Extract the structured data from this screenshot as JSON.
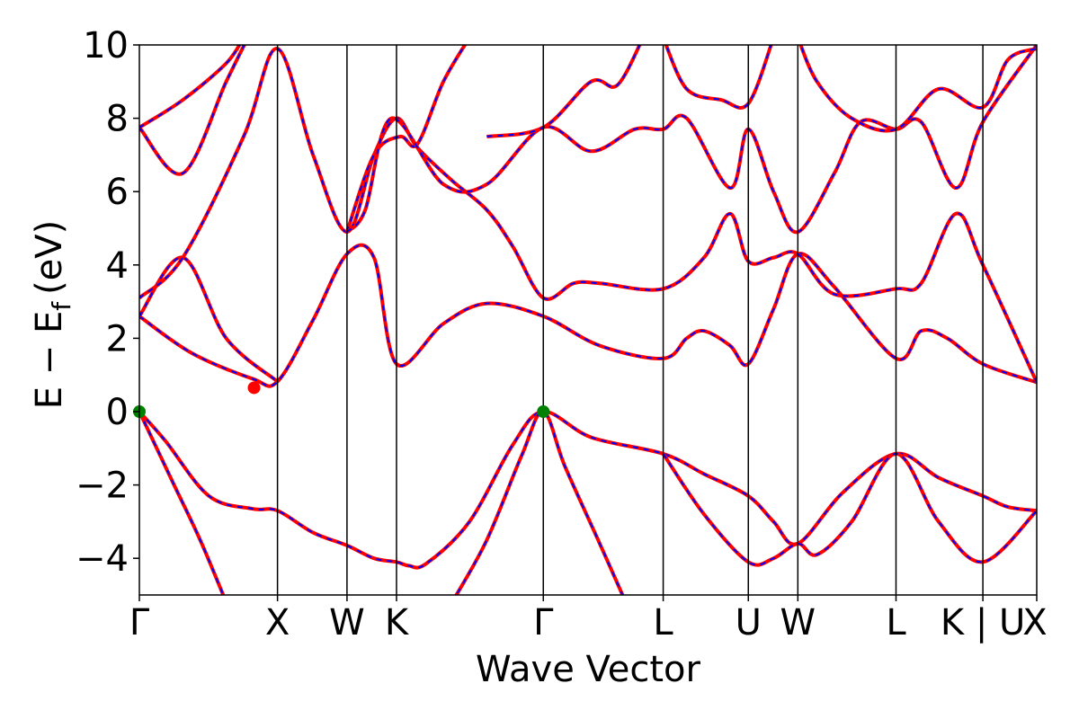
{
  "chart_data": {
    "type": "line",
    "xlabel": "Wave Vector",
    "ylabel_main": "E − E",
    "ylabel_sub": "f",
    "ylabel_unit": "(eV)",
    "ylim": [
      -5,
      10
    ],
    "yticks": [
      -4,
      -2,
      0,
      2,
      4,
      6,
      8,
      10
    ],
    "ytick_labels": [
      "−4",
      "−2",
      "0",
      "2",
      "4",
      "6",
      "8",
      "10"
    ],
    "x_range": [
      0,
      10.33
    ],
    "kpoints": [
      {
        "label": "Γ",
        "x": 0
      },
      {
        "label": "X",
        "x": 1.59
      },
      {
        "label": "W",
        "x": 2.39
      },
      {
        "label": "K",
        "x": 2.96
      },
      {
        "label": "Γ",
        "x": 4.65
      },
      {
        "label": "L",
        "x": 6.03
      },
      {
        "label": "U",
        "x": 7.01
      },
      {
        "label": "W",
        "x": 7.58
      },
      {
        "label": "L",
        "x": 8.71
      },
      {
        "label": "K | U",
        "x": 9.71
      },
      {
        "label": "X",
        "x": 10.33
      }
    ],
    "colors": {
      "line_main": "#ff0000",
      "line_dash": "#0000ff",
      "cbm": "#ff0000",
      "vbm": "#008000"
    },
    "markers": [
      {
        "name": "cbm",
        "x": 1.32,
        "y": 0.65
      },
      {
        "name": "vbm",
        "x": 0,
        "y": 0
      },
      {
        "name": "vbm",
        "x": 4.65,
        "y": 0
      }
    ],
    "series": [
      {
        "values": [
          [
            0,
            0
          ],
          [
            0.3,
            -0.8
          ],
          [
            0.8,
            -2.3
          ],
          [
            1.3,
            -2.65
          ],
          [
            1.59,
            -2.7
          ],
          [
            2.0,
            -3.3
          ],
          [
            2.39,
            -3.65
          ],
          [
            2.7,
            -4.0
          ],
          [
            2.96,
            -4.1
          ],
          [
            3.1,
            -4.2
          ],
          [
            3.3,
            -4.15
          ],
          [
            3.8,
            -3.0
          ],
          [
            4.3,
            -0.9
          ],
          [
            4.65,
            0
          ],
          [
            5.2,
            -0.7
          ],
          [
            6.03,
            -1.15
          ],
          [
            6.5,
            -1.7
          ],
          [
            7.01,
            -2.3
          ],
          [
            7.3,
            -3.0
          ],
          [
            7.58,
            -3.6
          ],
          [
            8.1,
            -2.2
          ],
          [
            8.71,
            -1.15
          ],
          [
            9.2,
            -1.8
          ],
          [
            9.71,
            -2.3
          ],
          [
            10.0,
            -2.6
          ],
          [
            10.33,
            -2.7
          ]
        ]
      },
      {
        "values": [
          [
            0,
            0
          ],
          [
            0.4,
            -2.0
          ],
          [
            0.7,
            -3.5
          ],
          [
            1.0,
            -5.2
          ]
        ]
      },
      {
        "values": [
          [
            3.6,
            -5.2
          ],
          [
            4.0,
            -3.5
          ],
          [
            4.4,
            -1.2
          ],
          [
            4.65,
            0
          ],
          [
            4.9,
            -1.5
          ],
          [
            5.3,
            -3.6
          ],
          [
            5.6,
            -5.2
          ]
        ]
      },
      {
        "values": [
          [
            6.03,
            -1.15
          ],
          [
            6.5,
            -2.8
          ],
          [
            7.01,
            -4.1
          ],
          [
            7.3,
            -4.0
          ],
          [
            7.58,
            -3.6
          ],
          [
            7.8,
            -3.9
          ],
          [
            8.2,
            -3.0
          ],
          [
            8.71,
            -1.15
          ],
          [
            9.2,
            -3.0
          ],
          [
            9.71,
            -4.1
          ],
          [
            10.33,
            -2.7
          ]
        ]
      },
      {
        "values": [
          [
            0,
            2.6
          ],
          [
            0.6,
            1.6
          ],
          [
            1.3,
            0.9
          ],
          [
            1.59,
            0.82
          ],
          [
            2.0,
            2.5
          ],
          [
            2.39,
            4.3
          ],
          [
            2.7,
            4.2
          ],
          [
            2.96,
            1.3
          ],
          [
            3.5,
            2.4
          ],
          [
            4.0,
            2.95
          ],
          [
            4.65,
            2.6
          ],
          [
            5.3,
            1.8
          ],
          [
            6.03,
            1.45
          ],
          [
            6.3,
            2.0
          ],
          [
            6.5,
            2.2
          ],
          [
            6.8,
            1.8
          ],
          [
            7.01,
            1.3
          ],
          [
            7.3,
            2.8
          ],
          [
            7.58,
            4.3
          ],
          [
            8.0,
            3.4
          ],
          [
            8.71,
            1.45
          ],
          [
            9.0,
            2.2
          ],
          [
            9.3,
            2.0
          ],
          [
            9.71,
            1.3
          ],
          [
            10.33,
            0.8
          ]
        ]
      },
      {
        "values": [
          [
            0,
            2.6
          ],
          [
            0.5,
            4.2
          ],
          [
            1.0,
            2.0
          ],
          [
            1.59,
            0.82
          ]
        ]
      },
      {
        "values": [
          [
            0,
            3.1
          ],
          [
            0.5,
            4.2
          ],
          [
            1.2,
            7.5
          ],
          [
            1.59,
            9.9
          ],
          [
            2.0,
            7.0
          ],
          [
            2.39,
            4.9
          ],
          [
            2.7,
            7.0
          ],
          [
            2.96,
            8.0
          ],
          [
            3.2,
            7.2
          ],
          [
            3.6,
            6.3
          ],
          [
            4.0,
            5.5
          ],
          [
            4.3,
            4.5
          ],
          [
            4.65,
            3.1
          ],
          [
            5.0,
            3.5
          ],
          [
            5.3,
            3.5
          ],
          [
            6.03,
            3.35
          ],
          [
            6.5,
            4.2
          ],
          [
            6.8,
            5.4
          ],
          [
            7.01,
            4.1
          ],
          [
            7.3,
            4.2
          ],
          [
            7.58,
            4.3
          ],
          [
            8.0,
            3.2
          ],
          [
            8.71,
            3.35
          ],
          [
            9.0,
            3.5
          ],
          [
            9.4,
            5.4
          ],
          [
            9.71,
            4.0
          ],
          [
            10.33,
            0.8
          ]
        ]
      },
      {
        "values": [
          [
            0,
            7.75
          ],
          [
            0.5,
            6.5
          ],
          [
            1.0,
            9.0
          ],
          [
            1.25,
            10.2
          ]
        ]
      },
      {
        "values": [
          [
            0,
            7.75
          ],
          [
            0.5,
            8.5
          ],
          [
            1.0,
            9.5
          ],
          [
            1.2,
            10.2
          ]
        ]
      },
      {
        "values": [
          [
            2.39,
            4.9
          ],
          [
            2.7,
            7.0
          ],
          [
            3.0,
            7.5
          ],
          [
            3.2,
            7.3
          ],
          [
            3.5,
            9.0
          ],
          [
            3.8,
            10.2
          ]
        ]
      },
      {
        "values": [
          [
            2.39,
            4.9
          ],
          [
            2.6,
            5.5
          ],
          [
            2.9,
            8.0
          ],
          [
            3.5,
            6.2
          ],
          [
            4.0,
            6.2
          ],
          [
            4.65,
            7.75
          ],
          [
            5.2,
            7.1
          ],
          [
            5.7,
            7.7
          ],
          [
            6.03,
            7.7
          ],
          [
            6.3,
            8.0
          ],
          [
            6.8,
            6.1
          ],
          [
            7.01,
            7.7
          ],
          [
            7.3,
            6.0
          ],
          [
            7.58,
            4.9
          ],
          [
            8.0,
            6.5
          ],
          [
            8.3,
            7.9
          ],
          [
            8.71,
            7.7
          ],
          [
            9.0,
            7.9
          ],
          [
            9.4,
            6.1
          ],
          [
            9.71,
            7.9
          ],
          [
            10.33,
            10.0
          ]
        ]
      },
      {
        "values": [
          [
            4.0,
            7.5
          ],
          [
            4.65,
            7.75
          ],
          [
            5.2,
            9.0
          ],
          [
            5.5,
            8.9
          ],
          [
            5.8,
            10.2
          ]
        ]
      },
      {
        "values": [
          [
            6.03,
            10.2
          ],
          [
            6.3,
            8.8
          ],
          [
            6.7,
            8.5
          ],
          [
            7.01,
            8.4
          ],
          [
            7.3,
            10.2
          ]
        ]
      },
      {
        "values": [
          [
            7.58,
            10.2
          ],
          [
            7.8,
            9.0
          ],
          [
            8.2,
            8.0
          ],
          [
            8.71,
            7.7
          ],
          [
            9.2,
            8.8
          ],
          [
            9.71,
            8.3
          ],
          [
            10.0,
            9.6
          ],
          [
            10.33,
            9.9
          ]
        ]
      }
    ]
  }
}
